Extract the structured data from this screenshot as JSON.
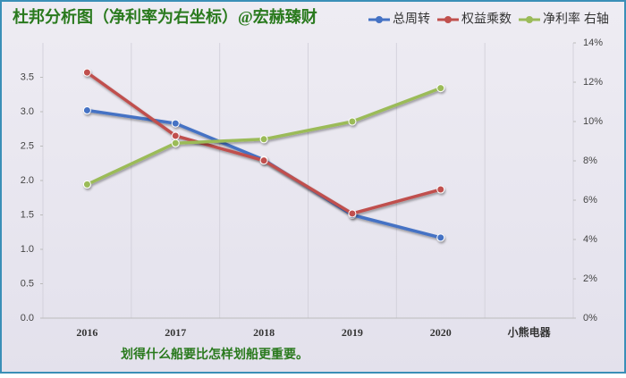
{
  "chart_data": {
    "type": "line",
    "title": "杜邦分析图（净利率为右坐标）@宏赫臻财",
    "annotation": "划得什么船要比怎样划船更重要。",
    "categories": [
      "2016",
      "2017",
      "2018",
      "2019",
      "2020",
      "小熊电器"
    ],
    "series": [
      {
        "name": "总周转",
        "color": "#4472c4",
        "values": [
          3.02,
          2.83,
          2.3,
          1.5,
          1.17,
          null
        ]
      },
      {
        "name": "权益乘数",
        "color": "#c0504d",
        "values": [
          3.57,
          2.65,
          2.29,
          1.52,
          1.87,
          null
        ]
      },
      {
        "name": "净利率 右轴",
        "color": "#9bbb59",
        "axis": "y2",
        "values": [
          6.8,
          8.9,
          9.1,
          10.0,
          11.7,
          null
        ]
      }
    ],
    "ylim": [
      0,
      4
    ],
    "yticks": [
      {
        "value": 0,
        "label": "0.0"
      },
      0.5,
      {
        "value": 1,
        "label": "1.0"
      },
      1.5,
      {
        "value": 2,
        "label": "2.0"
      },
      2.5,
      {
        "value": 3,
        "label": "3.0"
      },
      3.5
    ],
    "y2lim": [
      0,
      14
    ],
    "y2ticks": [
      {
        "value": 0,
        "label": "0%"
      },
      {
        "value": 2,
        "label": "2%"
      },
      {
        "value": 4,
        "label": "4%"
      },
      {
        "value": 6,
        "label": "6%"
      },
      {
        "value": 8,
        "label": "8%"
      },
      {
        "value": 10,
        "label": "10%"
      },
      {
        "value": 12,
        "label": "12%"
      },
      {
        "value": 14,
        "label": "14%"
      }
    ],
    "legend": "top-right"
  }
}
